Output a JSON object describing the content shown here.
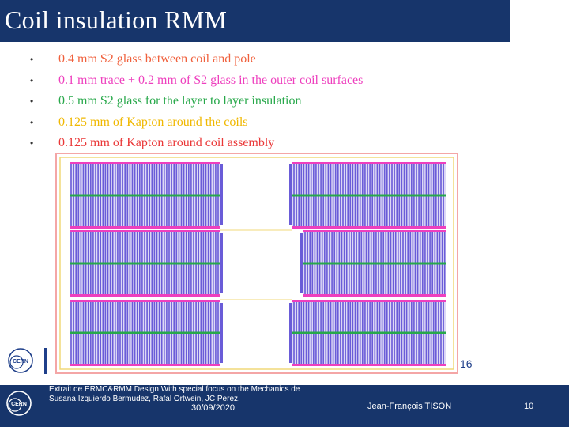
{
  "slide": {
    "title": "Coil insulation RMM",
    "bullets": [
      {
        "text": "0.4 mm S2 glass between coil and pole",
        "color": "#f0603c"
      },
      {
        "text": "0.1 mm trace + 0.2 mm of S2 glass in the outer coil surfaces",
        "color": "#ee3fbe"
      },
      {
        "text": "0.5 mm S2 glass for the layer to layer insulation",
        "color": "#27a84a"
      },
      {
        "text": "0.125 mm of Kapton around the coils",
        "color": "#f0b800"
      },
      {
        "text": "0.125 mm of Kapton around coil assembly",
        "color": "#ea3838"
      }
    ],
    "figure_label": "16"
  },
  "footer": {
    "caption_line1": "Extrait de ERMC&RMM Design With special focus on the Mechanics de",
    "caption_line2": "Susana Izquierdo Bermudez, Rafal Ortwein, JC Perez.",
    "date": "30/09/2020",
    "author": "Jean-François TISON",
    "page": "10"
  },
  "logos": {
    "top": "CERN",
    "bottom": "CERN"
  },
  "colors": {
    "title_bar": "#17356b",
    "pole_insulation": "#f0603c",
    "outer_surface_glass": "#ee3fbe",
    "layer_glass": "#27a84a",
    "coil_kapton": "#f0b800",
    "assembly_kapton": "#ea3838",
    "conductor": "#6a5cd8"
  }
}
